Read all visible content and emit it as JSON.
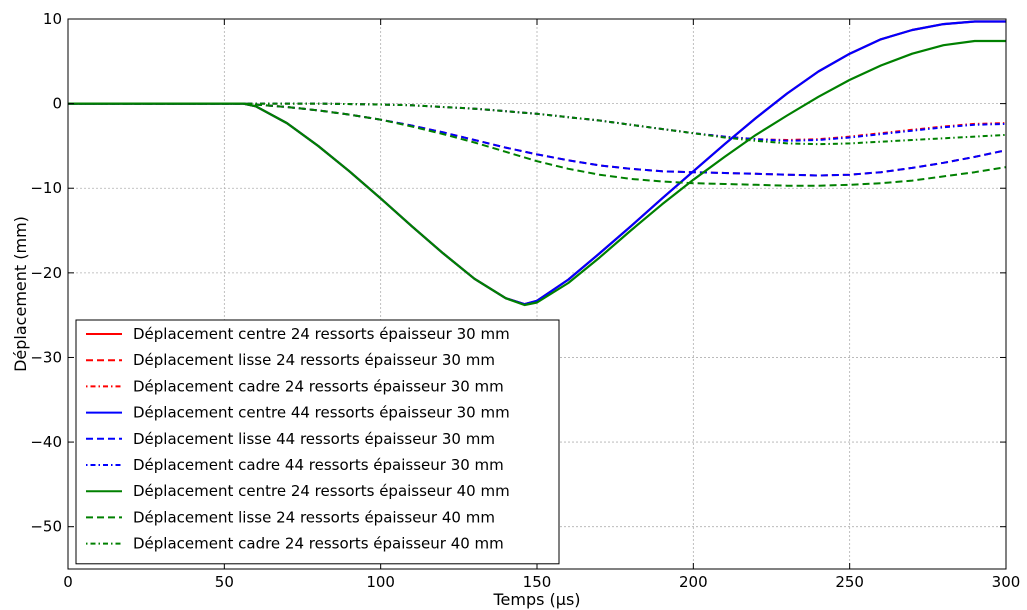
{
  "chart_data": {
    "type": "line",
    "xlabel": "Temps (μs)",
    "ylabel": "Déplacement (mm)",
    "xlim": [
      0,
      300
    ],
    "ylim": [
      -55,
      10
    ],
    "xticks": [
      0,
      50,
      100,
      150,
      200,
      250,
      300
    ],
    "yticks": [
      10,
      0,
      -10,
      -20,
      -30,
      -40,
      -50
    ],
    "grid": true,
    "legend_position": "lower-left",
    "series": [
      {
        "name": "Déplacement centre 24 ressorts épaisseur 30 mm",
        "color": "#ff0000",
        "style": "solid",
        "x": [
          0,
          56,
          60,
          70,
          80,
          90,
          100,
          110,
          120,
          130,
          140,
          146,
          150,
          160,
          170,
          180,
          190,
          200,
          210,
          220,
          230,
          240,
          250,
          260,
          270,
          280,
          290,
          300
        ],
        "y": [
          0,
          0,
          -0.3,
          -2.3,
          -5,
          -8,
          -11.2,
          -14.5,
          -17.7,
          -20.7,
          -23,
          -23.7,
          -23.3,
          -20.8,
          -17.7,
          -14.5,
          -11.2,
          -8,
          -4.8,
          -1.7,
          1.2,
          3.8,
          5.9,
          7.6,
          8.7,
          9.4,
          9.7,
          9.7
        ]
      },
      {
        "name": "Déplacement lisse 24 ressorts épaisseur 30 mm",
        "color": "#ff0000",
        "style": "dashed",
        "x": [
          0,
          56,
          60,
          70,
          80,
          90,
          100,
          110,
          120,
          130,
          140,
          150,
          160,
          170,
          180,
          190,
          200,
          210,
          220,
          230,
          240,
          250,
          260,
          270,
          280,
          290,
          300
        ],
        "y": [
          0,
          0,
          -0.1,
          -0.4,
          -0.8,
          -1.3,
          -1.9,
          -2.6,
          -3.4,
          -4.3,
          -5.2,
          -6.0,
          -6.7,
          -7.3,
          -7.7,
          -8.0,
          -8.1,
          -8.2,
          -8.3,
          -8.4,
          -8.5,
          -8.4,
          -8.1,
          -7.6,
          -7.0,
          -6.3,
          -5.5
        ]
      },
      {
        "name": "Déplacement cadre 24 ressorts épaisseur 30 mm",
        "color": "#ff0000",
        "style": "dashdot",
        "x": [
          0,
          60,
          80,
          100,
          110,
          120,
          130,
          140,
          150,
          160,
          170,
          180,
          190,
          200,
          210,
          220,
          230,
          240,
          250,
          260,
          270,
          280,
          290,
          300
        ],
        "y": [
          0,
          0,
          0,
          -0.1,
          -0.2,
          -0.4,
          -0.6,
          -0.9,
          -1.2,
          -1.6,
          -2.0,
          -2.5,
          -3.0,
          -3.5,
          -3.9,
          -4.2,
          -4.3,
          -4.2,
          -3.9,
          -3.5,
          -3.1,
          -2.7,
          -2.4,
          -2.3
        ]
      },
      {
        "name": "Déplacement centre 44 ressorts épaisseur 30 mm",
        "color": "#0000ff",
        "style": "solid",
        "x": [
          0,
          56,
          60,
          70,
          80,
          90,
          100,
          110,
          120,
          130,
          140,
          146,
          150,
          160,
          170,
          180,
          190,
          200,
          210,
          220,
          230,
          240,
          250,
          260,
          270,
          280,
          290,
          300
        ],
        "y": [
          0,
          0,
          -0.3,
          -2.3,
          -5,
          -8,
          -11.2,
          -14.5,
          -17.7,
          -20.7,
          -23,
          -23.7,
          -23.3,
          -20.8,
          -17.7,
          -14.5,
          -11.2,
          -8,
          -4.8,
          -1.7,
          1.2,
          3.8,
          5.9,
          7.6,
          8.7,
          9.4,
          9.7,
          9.7
        ]
      },
      {
        "name": "Déplacement lisse 44 ressorts épaisseur 30 mm",
        "color": "#0000ff",
        "style": "dashed",
        "x": [
          0,
          56,
          60,
          70,
          80,
          90,
          100,
          110,
          120,
          130,
          140,
          150,
          160,
          170,
          180,
          190,
          200,
          210,
          220,
          230,
          240,
          250,
          260,
          270,
          280,
          290,
          300
        ],
        "y": [
          0,
          0,
          -0.1,
          -0.4,
          -0.8,
          -1.3,
          -1.9,
          -2.6,
          -3.4,
          -4.3,
          -5.2,
          -6.0,
          -6.7,
          -7.3,
          -7.7,
          -8.0,
          -8.1,
          -8.2,
          -8.3,
          -8.4,
          -8.5,
          -8.4,
          -8.1,
          -7.6,
          -7.0,
          -6.3,
          -5.5
        ]
      },
      {
        "name": "Déplacement cadre 44 ressorts épaisseur 30 mm",
        "color": "#0000ff",
        "style": "dashdot",
        "x": [
          0,
          60,
          80,
          100,
          110,
          120,
          130,
          140,
          150,
          160,
          170,
          180,
          190,
          200,
          210,
          220,
          230,
          240,
          250,
          260,
          270,
          280,
          290,
          300
        ],
        "y": [
          0,
          0,
          0,
          -0.1,
          -0.2,
          -0.4,
          -0.6,
          -0.9,
          -1.2,
          -1.6,
          -2.0,
          -2.5,
          -3.0,
          -3.5,
          -3.9,
          -4.2,
          -4.4,
          -4.3,
          -4.0,
          -3.6,
          -3.2,
          -2.8,
          -2.5,
          -2.4
        ]
      },
      {
        "name": "Déplacement centre 24 ressorts épaisseur 40 mm",
        "color": "#008000",
        "style": "solid",
        "x": [
          0,
          56,
          60,
          70,
          80,
          90,
          100,
          110,
          120,
          130,
          140,
          146,
          150,
          160,
          170,
          180,
          190,
          200,
          210,
          220,
          230,
          240,
          250,
          260,
          270,
          280,
          290,
          300
        ],
        "y": [
          0,
          0,
          -0.3,
          -2.3,
          -5,
          -8,
          -11.2,
          -14.5,
          -17.7,
          -20.7,
          -23,
          -23.8,
          -23.5,
          -21.2,
          -18.2,
          -15.0,
          -11.9,
          -9.0,
          -6.3,
          -3.7,
          -1.4,
          0.8,
          2.8,
          4.5,
          5.9,
          6.9,
          7.4,
          7.4
        ]
      },
      {
        "name": "Déplacement lisse 24 ressorts épaisseur 40 mm",
        "color": "#008000",
        "style": "dashed",
        "x": [
          0,
          56,
          60,
          70,
          80,
          90,
          100,
          110,
          120,
          130,
          140,
          150,
          160,
          170,
          180,
          190,
          200,
          210,
          220,
          230,
          240,
          250,
          260,
          270,
          280,
          290,
          300
        ],
        "y": [
          0,
          0,
          -0.1,
          -0.4,
          -0.8,
          -1.3,
          -1.9,
          -2.7,
          -3.6,
          -4.6,
          -5.7,
          -6.8,
          -7.7,
          -8.4,
          -8.9,
          -9.2,
          -9.4,
          -9.5,
          -9.6,
          -9.7,
          -9.7,
          -9.6,
          -9.4,
          -9.1,
          -8.6,
          -8.1,
          -7.5
        ]
      },
      {
        "name": "Déplacement cadre 24 ressorts épaisseur 40 mm",
        "color": "#008000",
        "style": "dashdot",
        "x": [
          0,
          60,
          80,
          100,
          110,
          120,
          130,
          140,
          150,
          160,
          170,
          180,
          190,
          200,
          210,
          220,
          230,
          240,
          250,
          260,
          270,
          280,
          290,
          300
        ],
        "y": [
          0,
          0,
          0,
          -0.1,
          -0.2,
          -0.4,
          -0.6,
          -0.9,
          -1.2,
          -1.6,
          -2.0,
          -2.5,
          -3.0,
          -3.5,
          -4.0,
          -4.4,
          -4.7,
          -4.8,
          -4.7,
          -4.5,
          -4.3,
          -4.1,
          -3.9,
          -3.7
        ]
      }
    ]
  }
}
